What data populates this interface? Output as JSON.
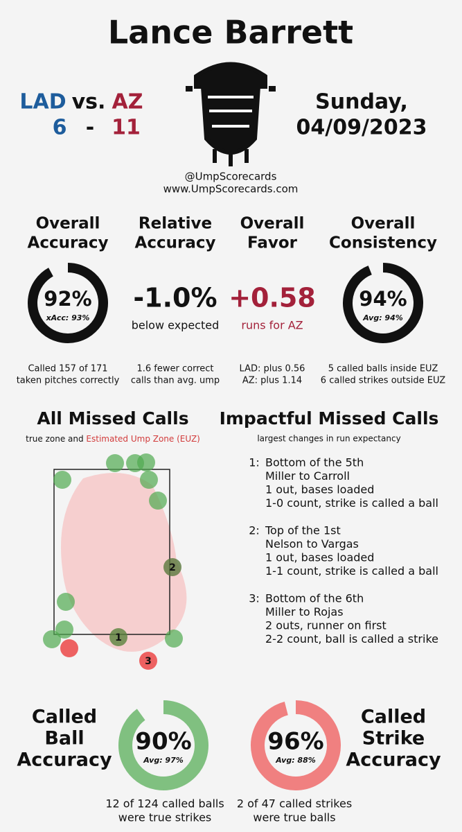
{
  "header": {
    "title": "Lance Barrett",
    "away": "LAD",
    "vs": "vs.",
    "home": "AZ",
    "away_score": "6",
    "dash": "-",
    "home_score": "11",
    "day": "Sunday,",
    "date": "04/09/2023",
    "handle": "@UmpScorecards",
    "site": "www.UmpScorecards.com"
  },
  "metrics": [
    {
      "title": [
        "Overall",
        "Accuracy"
      ],
      "ring": {
        "value": 92,
        "value_label": "92%",
        "sub": "xAcc: 93%"
      },
      "caption": [
        "Called 157 of 171",
        "taken pitches correctly"
      ]
    },
    {
      "title": [
        "Relative",
        "Accuracy"
      ],
      "big": "-1.0%",
      "note": "below expected",
      "caption": [
        "1.6 fewer correct",
        "calls than avg. ump"
      ]
    },
    {
      "title": [
        "Overall",
        "Favor"
      ],
      "big": "+0.58",
      "note": "runs for AZ",
      "caption": [
        "LAD: plus 0.56",
        "AZ: plus 1.14"
      ]
    },
    {
      "title": [
        "Overall",
        "Consistency"
      ],
      "ring": {
        "value": 94,
        "value_label": "94%",
        "sub": "Avg: 94%"
      },
      "caption": [
        "5 called balls inside EUZ",
        "6 called strikes outside EUZ"
      ]
    }
  ],
  "missed": {
    "title": "All Missed Calls",
    "subtitle": "true zone and ",
    "subtitle_red": "Estimated Ump Zone (EUZ)",
    "markers": [
      "1",
      "2",
      "3"
    ]
  },
  "impactful": {
    "title": "Impactful Missed Calls",
    "subtitle": "largest changes in run expectancy",
    "items": [
      {
        "rank": "1:",
        "lines": [
          "Bottom of the 5th",
          "Miller to Carroll",
          "1 out, bases loaded",
          "1-0 count, strike is called a ball"
        ]
      },
      {
        "rank": "2:",
        "lines": [
          "Top of the 1st",
          "Nelson to Vargas",
          "1 out, bases loaded",
          "1-1 count, strike is called a ball"
        ]
      },
      {
        "rank": "3:",
        "lines": [
          "Bottom of the 6th",
          "Miller to Rojas",
          "2 outs, runner on first",
          "2-2 count, ball is called a strike"
        ]
      }
    ]
  },
  "ball": {
    "title": [
      "Called",
      "Ball",
      "Accuracy"
    ],
    "ring": {
      "value": 90,
      "value_label": "90%",
      "sub": "Avg: 97%"
    },
    "caption": [
      "12 of 124 called balls",
      "were true strikes"
    ]
  },
  "strike": {
    "title": [
      "Called",
      "Strike",
      "Accuracy"
    ],
    "ring": {
      "value": 96,
      "value_label": "96%",
      "sub": "Avg: 88%"
    },
    "caption": [
      "2 of 47 called strikes",
      "were true balls"
    ]
  }
}
